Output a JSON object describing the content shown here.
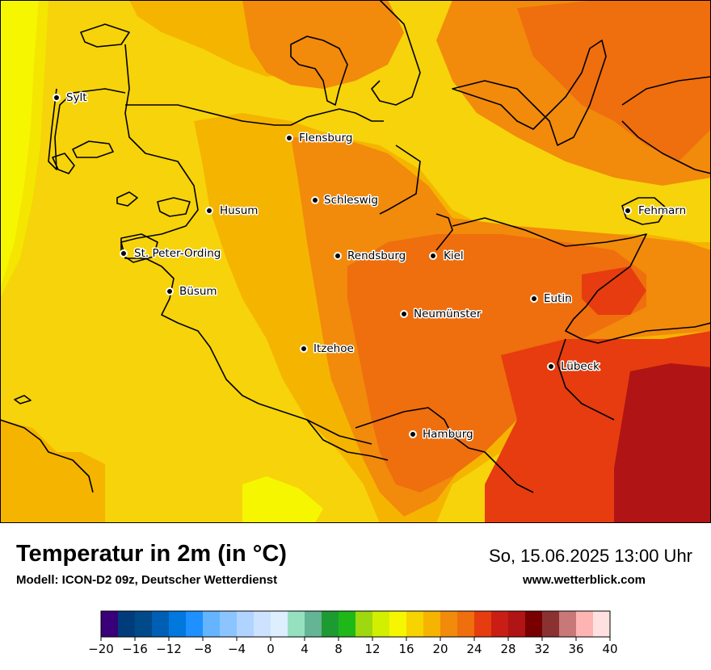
{
  "title": "Temperatur in 2m (in °C)",
  "subtitle": "Modell: ICON-D2 09z, Deutscher Wetterdienst",
  "datetime": "So, 15.06.2025 13:00 Uhr",
  "website": "www.wetterblick.com",
  "cities": [
    {
      "name": "Sylt"
    },
    {
      "name": "Flensburg"
    },
    {
      "name": "Schleswig"
    },
    {
      "name": "Husum"
    },
    {
      "name": "Fehmarn"
    },
    {
      "name": "St. Peter-Ording"
    },
    {
      "name": "Rendsburg"
    },
    {
      "name": "Kiel"
    },
    {
      "name": "Büsum"
    },
    {
      "name": "Eutin"
    },
    {
      "name": "Neumünster"
    },
    {
      "name": "Itzehoe"
    },
    {
      "name": "Lübeck"
    },
    {
      "name": "Hamburg"
    }
  ],
  "colorbar": {
    "colors": [
      "#3a0079",
      "#003c7a",
      "#004a8a",
      "#005fb5",
      "#0078dd",
      "#1e90ff",
      "#64b4ff",
      "#8cc4ff",
      "#b0d4ff",
      "#cce2ff",
      "#ddeeff",
      "#96e0c0",
      "#64b496",
      "#1e9a32",
      "#1fb819",
      "#9ed80e",
      "#d2ef00",
      "#f6f600",
      "#f7d300",
      "#f5b400",
      "#f28a0c",
      "#ef6e0e",
      "#e63c0f",
      "#c81e14",
      "#b01414",
      "#780000",
      "#8a3232",
      "#c87878",
      "#ffb4b4",
      "#ffe0e0"
    ],
    "tick_labels": [
      "−20",
      "−16",
      "−12",
      "−8",
      "−4",
      "0",
      "4",
      "8",
      "12",
      "16",
      "20",
      "24",
      "28",
      "32",
      "36",
      "40"
    ],
    "min": -20,
    "max": 40
  }
}
